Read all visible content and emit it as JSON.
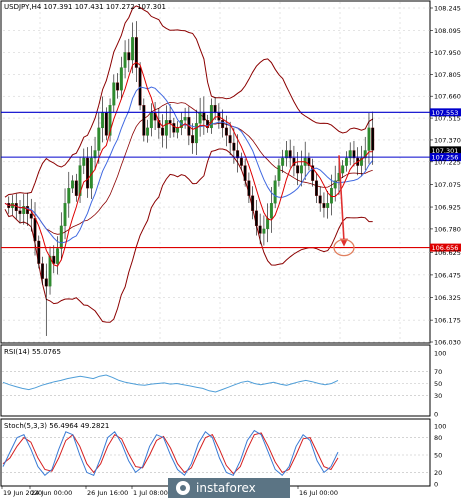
{
  "header": {
    "symbol": "USDJPY,H4",
    "ohlc": "107.391 107.431 107.272 107.301"
  },
  "rsi_panel": {
    "title": "RSI(14) 55.0765"
  },
  "stoch_panel": {
    "title": "Stoch(5,3,3) 56.4964 49.2821"
  },
  "watermark": "instaforex",
  "price_axis_labels": [
    "108.245",
    "108.095",
    "107.950",
    "107.805",
    "107.660",
    "107.515",
    "107.370",
    "107.225",
    "107.075",
    "106.925",
    "106.780",
    "106.625",
    "106.475",
    "106.325",
    "106.175",
    "106.030"
  ],
  "rsi_axis_labels": [
    "100",
    "70",
    "50",
    "30",
    "0"
  ],
  "stoch_axis_labels": [
    "100",
    "80",
    "50",
    "20",
    "0"
  ],
  "time_labels": [
    "19 Jun 2020",
    "24 Jun 00:00",
    "26 Jun 16:00",
    "1 Jul 08:00",
    "16 Jul 00:00"
  ],
  "price_tags": [
    {
      "text": "107.553",
      "color": "#0000cc",
      "role": "resistance-line"
    },
    {
      "text": "107.301",
      "color": "#000000",
      "role": "current-price"
    },
    {
      "text": "107.256",
      "color": "#0000cc",
      "role": "support-line"
    },
    {
      "text": "106.656",
      "color": "#dd0000",
      "role": "target-line"
    }
  ],
  "chart_data": {
    "type": "candlestick",
    "symbol": "USDJPY",
    "timeframe": "H4",
    "ylim": [
      106.03,
      108.245
    ],
    "levels": {
      "resistance": 107.553,
      "support": 107.256,
      "target": 106.656,
      "current": 107.301
    },
    "close_path": [
      106.95,
      106.92,
      106.95,
      106.9,
      106.88,
      106.93,
      106.88,
      106.85,
      106.7,
      106.55,
      106.45,
      106.4,
      106.6,
      106.55,
      106.65,
      106.8,
      106.95,
      107.05,
      107.1,
      107.0,
      107.2,
      107.25,
      107.05,
      107.25,
      107.3,
      107.45,
      107.55,
      107.4,
      107.6,
      107.75,
      107.7,
      107.85,
      107.95,
      107.9,
      108.05,
      107.85,
      107.6,
      107.4,
      107.45,
      107.55,
      107.5,
      107.45,
      107.4,
      107.5,
      107.48,
      107.42,
      107.45,
      107.5,
      107.52,
      107.4,
      107.35,
      107.48,
      107.55,
      107.5,
      107.45,
      107.6,
      107.55,
      107.5,
      107.45,
      107.4,
      107.35,
      107.3,
      107.25,
      107.2,
      107.1,
      107.0,
      106.9,
      106.8,
      106.75,
      106.78,
      106.85,
      106.95,
      107.1,
      107.2,
      107.25,
      107.3,
      107.25,
      107.2,
      107.15,
      107.2,
      107.25,
      107.2,
      107.1,
      107.0,
      106.95,
      106.92,
      106.95,
      107.05,
      107.1,
      107.15,
      107.2,
      107.25,
      107.3,
      107.25,
      107.2,
      107.25,
      107.3,
      107.45,
      107.301
    ],
    "rsi": {
      "period": 14,
      "value": 55.0765,
      "ylim": [
        0,
        100
      ],
      "values": [
        52,
        48,
        45,
        42,
        40,
        43,
        47,
        50,
        53,
        55,
        58,
        60,
        62,
        60,
        58,
        62,
        64,
        60,
        55,
        52,
        50,
        48,
        47,
        49,
        50,
        51,
        49,
        50,
        48,
        46,
        44,
        42,
        38,
        36,
        40,
        44,
        48,
        52,
        54,
        50,
        48,
        50,
        52,
        49,
        47,
        50,
        53,
        55,
        53,
        50,
        48,
        50,
        55
      ]
    },
    "stochastic": {
      "params": "5,3,3",
      "k": 56.4964,
      "d": 49.2821,
      "ylim": [
        0,
        100
      ],
      "k_values": [
        30,
        55,
        80,
        85,
        60,
        30,
        15,
        25,
        60,
        90,
        85,
        50,
        20,
        15,
        45,
        80,
        90,
        70,
        40,
        20,
        30,
        65,
        85,
        80,
        50,
        25,
        15,
        35,
        70,
        90,
        80,
        45,
        20,
        15,
        40,
        75,
        92,
        85,
        55,
        25,
        15,
        30,
        65,
        85,
        75,
        40,
        20,
        30,
        55
      ],
      "d_values": [
        35,
        45,
        65,
        80,
        72,
        45,
        25,
        22,
        45,
        75,
        85,
        65,
        35,
        20,
        35,
        65,
        85,
        78,
        52,
        30,
        28,
        50,
        75,
        82,
        62,
        35,
        20,
        28,
        55,
        80,
        85,
        60,
        32,
        18,
        30,
        60,
        85,
        88,
        65,
        38,
        20,
        25,
        50,
        78,
        80,
        55,
        30,
        25,
        45
      ]
    }
  }
}
